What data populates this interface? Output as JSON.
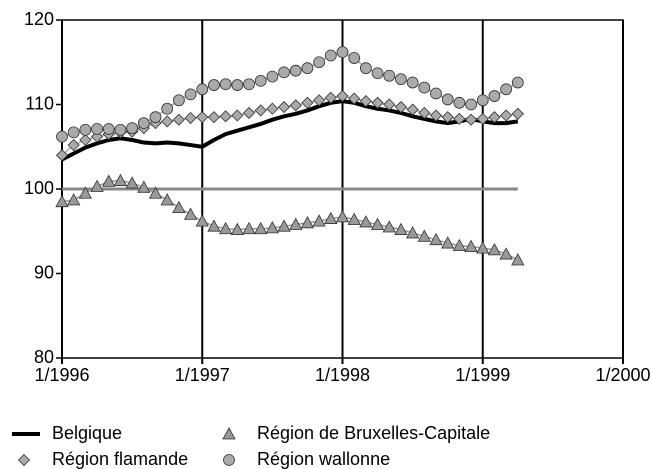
{
  "chart_data": {
    "type": "line",
    "x": [
      "1/1996",
      "2/1996",
      "3/1996",
      "4/1996",
      "5/1996",
      "6/1996",
      "7/1996",
      "8/1996",
      "9/1996",
      "10/1996",
      "11/1996",
      "12/1996",
      "1/1997",
      "2/1997",
      "3/1997",
      "4/1997",
      "5/1997",
      "6/1997",
      "7/1997",
      "8/1997",
      "9/1997",
      "10/1997",
      "11/1997",
      "12/1997",
      "1/1998",
      "2/1998",
      "3/1998",
      "4/1998",
      "5/1998",
      "6/1998",
      "7/1998",
      "8/1998",
      "9/1998",
      "10/1998",
      "11/1998",
      "12/1998",
      "1/1999",
      "2/1999",
      "3/1999",
      "4/1999"
    ],
    "xlim": [
      "1/1996",
      "1/2000"
    ],
    "xticks": [
      "1/1996",
      "1/1997",
      "1/1998",
      "1/1999",
      "1/2000"
    ],
    "ylim": [
      80,
      120
    ],
    "yticks": [
      80,
      90,
      100,
      110,
      120
    ],
    "baseline": 100,
    "grid": true,
    "series": [
      {
        "name": "Belgique",
        "color": "#000000",
        "marker": "none",
        "values": [
          103.5,
          104.2,
          104.9,
          105.4,
          105.8,
          106.0,
          105.8,
          105.5,
          105.4,
          105.5,
          105.4,
          105.2,
          105.0,
          105.8,
          106.5,
          106.9,
          107.3,
          107.7,
          108.2,
          108.6,
          108.9,
          109.3,
          109.8,
          110.2,
          110.4,
          110.2,
          109.8,
          109.5,
          109.3,
          109.0,
          108.6,
          108.3,
          108.0,
          107.8,
          108.0,
          108.3,
          108.0,
          107.8,
          107.8,
          108.0
        ]
      },
      {
        "name": "Région de Bruxelles-Capitale",
        "color": "#999999",
        "marker": "triangle",
        "values": [
          98.5,
          98.7,
          99.5,
          100.3,
          100.9,
          101.0,
          100.7,
          100.2,
          99.5,
          98.7,
          97.8,
          97.0,
          96.2,
          95.6,
          95.3,
          95.2,
          95.3,
          95.3,
          95.4,
          95.6,
          95.8,
          96.0,
          96.2,
          96.5,
          96.7,
          96.4,
          96.1,
          95.8,
          95.5,
          95.2,
          94.8,
          94.4,
          94.0,
          93.6,
          93.3,
          93.2,
          93.0,
          92.8,
          92.3,
          91.6
        ]
      },
      {
        "name": "Région flamande",
        "color": "#aaaaaa",
        "marker": "diamond",
        "values": [
          104.0,
          105.2,
          105.8,
          106.2,
          106.5,
          106.7,
          106.8,
          107.2,
          107.8,
          108.0,
          108.2,
          108.4,
          108.5,
          108.5,
          108.6,
          108.7,
          109.0,
          109.3,
          109.5,
          109.7,
          109.9,
          110.2,
          110.5,
          110.8,
          111.0,
          110.7,
          110.4,
          110.2,
          110.0,
          109.7,
          109.4,
          109.0,
          108.7,
          108.5,
          108.3,
          108.2,
          108.3,
          108.5,
          108.7,
          108.9
        ]
      },
      {
        "name": "Région wallonne",
        "color": "#aaaaaa",
        "marker": "circle",
        "values": [
          106.2,
          106.7,
          107.0,
          107.1,
          107.1,
          107.0,
          107.2,
          107.8,
          108.5,
          109.5,
          110.5,
          111.2,
          111.8,
          112.3,
          112.4,
          112.3,
          112.4,
          112.8,
          113.3,
          113.8,
          114.0,
          114.3,
          115.0,
          115.8,
          116.2,
          115.5,
          114.3,
          113.7,
          113.4,
          113.0,
          112.6,
          112.0,
          111.3,
          110.6,
          110.2,
          110.0,
          110.5,
          111.0,
          111.8,
          112.6
        ]
      }
    ]
  }
}
